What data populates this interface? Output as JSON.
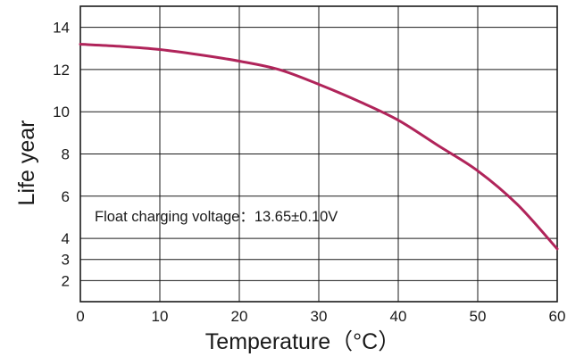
{
  "chart_data": {
    "type": "line",
    "xlabel": "Temperature（°C）",
    "ylabel": "Life year",
    "annotation": "Float charging voltage：13.65±0.10V",
    "xlim": [
      0,
      60
    ],
    "ylim": [
      1,
      15
    ],
    "x_ticks": [
      0,
      10,
      20,
      30,
      40,
      50,
      60
    ],
    "y_ticks": [
      2,
      3,
      4,
      6,
      8,
      10,
      12,
      14
    ],
    "grid": true,
    "colors": {
      "series": "#b0245a",
      "grid": "#1a1a1a"
    },
    "series": [
      {
        "x": [
          0,
          5,
          10,
          15,
          20,
          25,
          30,
          35,
          40,
          45,
          50,
          55,
          60
        ],
        "values": [
          13.2,
          13.1,
          12.95,
          12.7,
          12.4,
          12.0,
          11.3,
          10.5,
          9.6,
          8.4,
          7.2,
          5.6,
          3.5
        ]
      }
    ]
  }
}
